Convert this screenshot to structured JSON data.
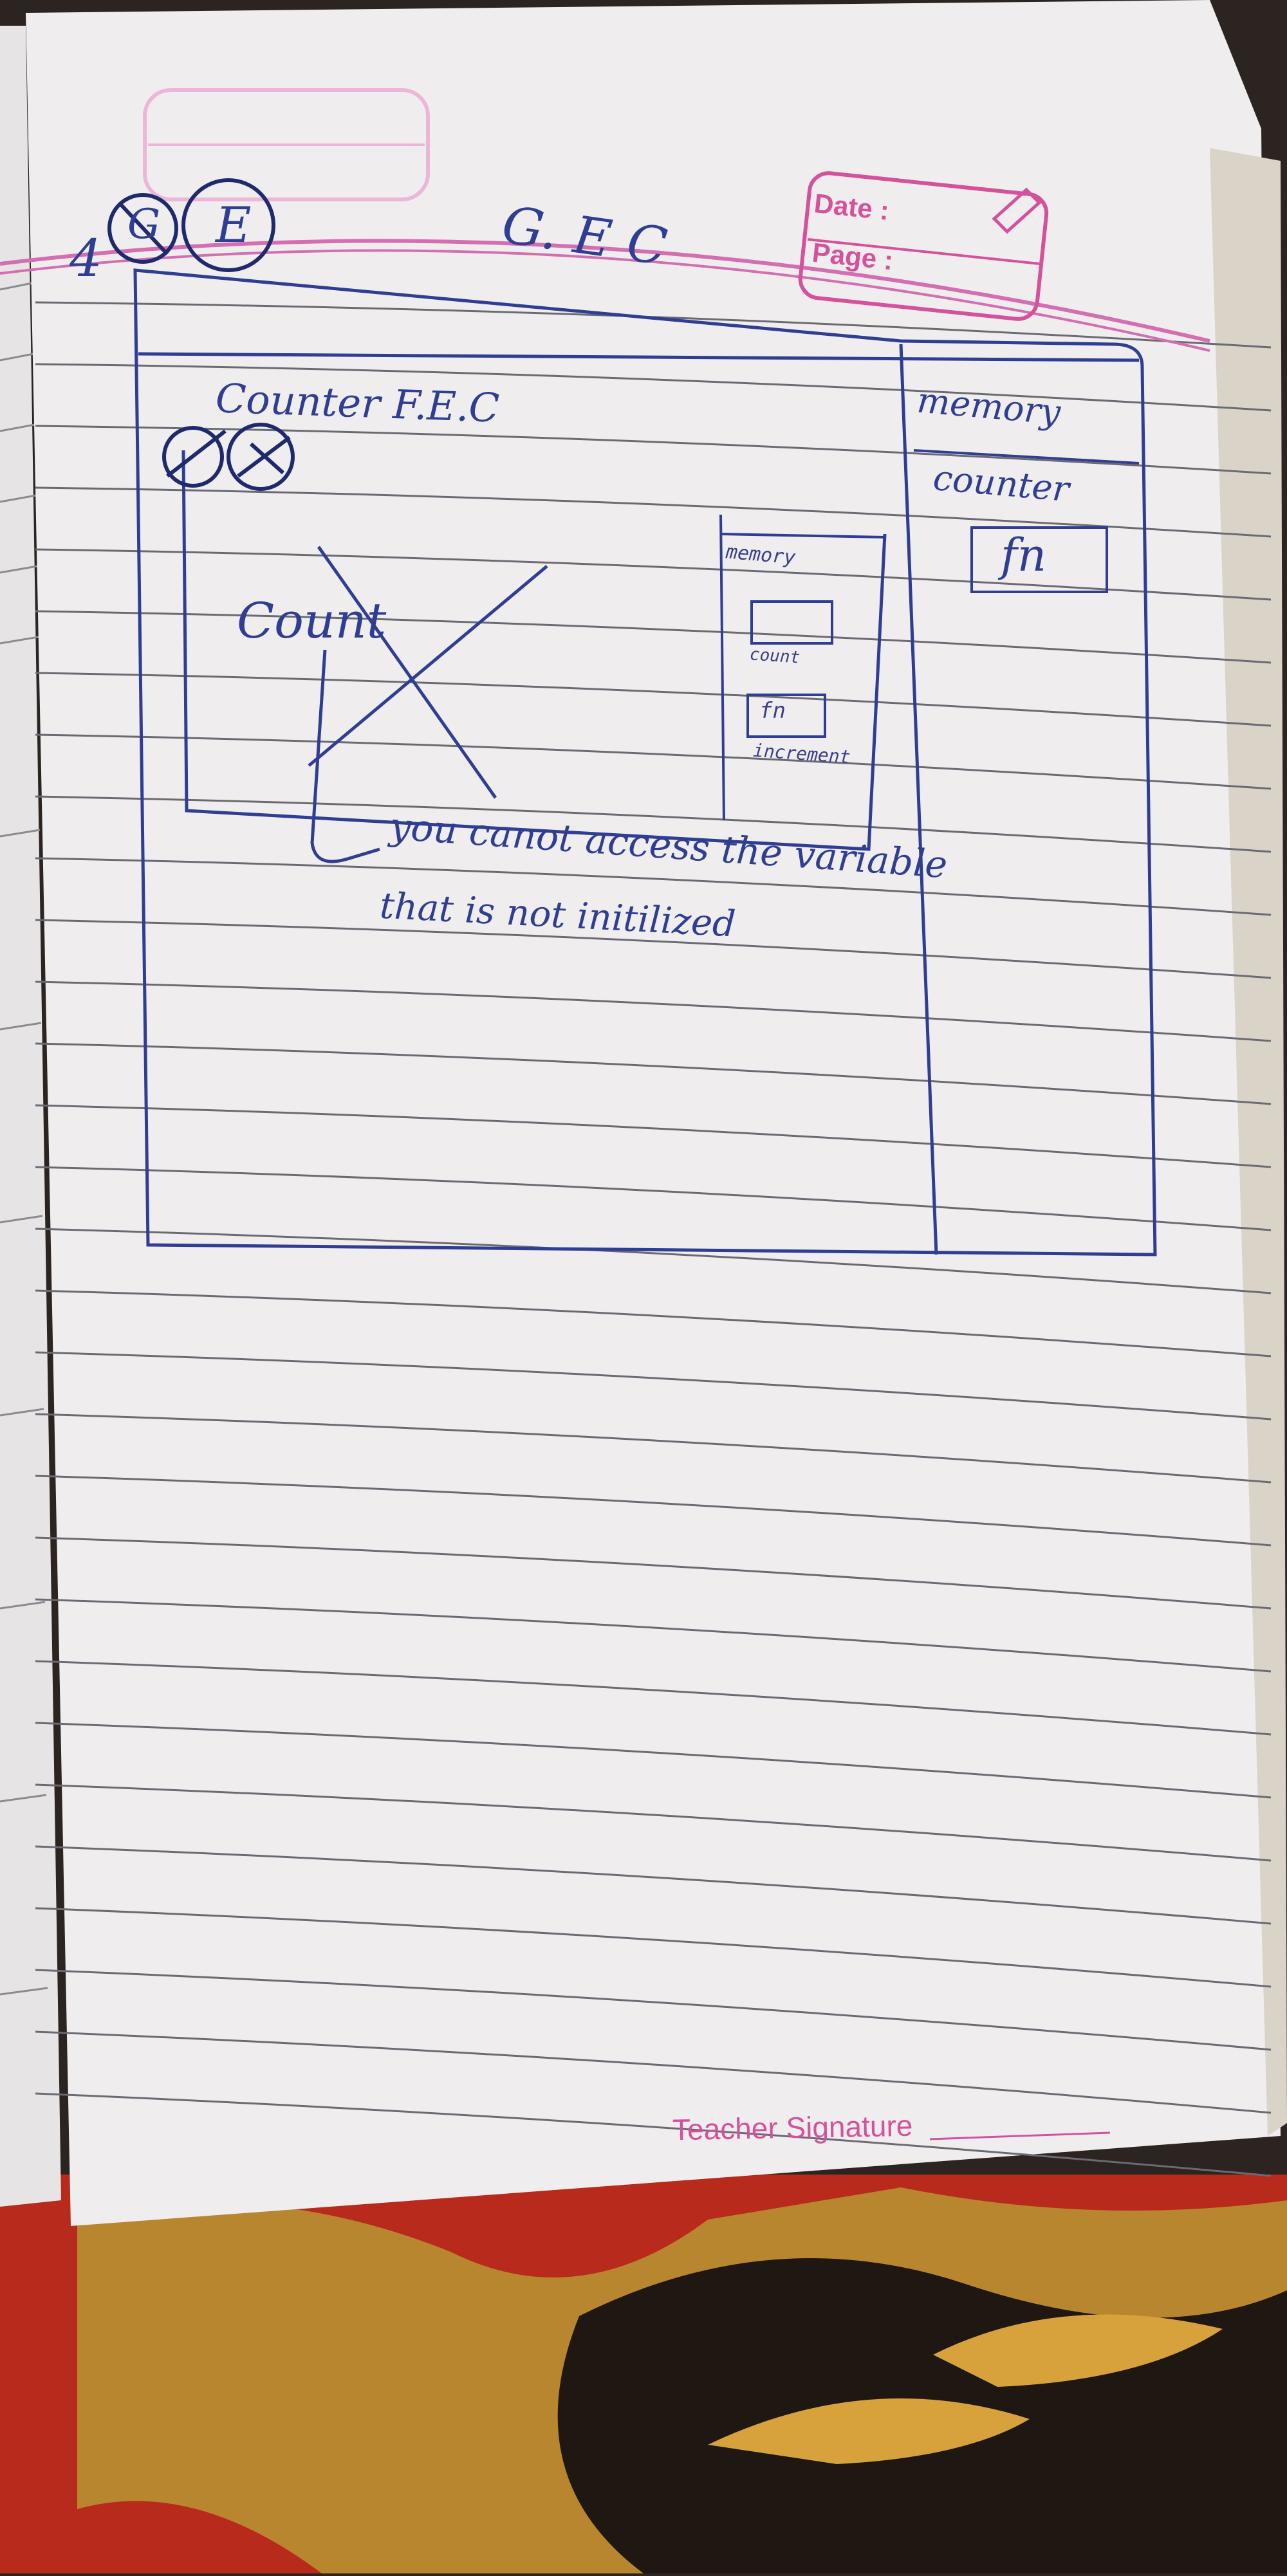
{
  "header": {
    "date_label": "Date :",
    "page_label": "Page :"
  },
  "notes": {
    "step_number": "4",
    "circled_marks": [
      "G",
      "E"
    ],
    "title": "G. E C",
    "outer_box": {
      "heading": "Counter F.E.C",
      "memory_label": "memory",
      "memory_item": "counter",
      "memory_value": "fn"
    },
    "inner_box": {
      "crossed_variable": "Count",
      "memory_label": "memory",
      "slot_count_label": "count",
      "slot_fn_value": "fn",
      "slot_fn_label": "increment"
    },
    "note_line_1": "you canot access the variable",
    "note_line_2": "that is not initilized"
  },
  "footer": {
    "signature_label": "Teacher Signature"
  },
  "colors": {
    "paper": "#efedee",
    "rule_line": "#6a6a72",
    "margin_line": "#d36fb1",
    "pen_ink": "#2f3e93",
    "print_pink": "#d4529c"
  }
}
